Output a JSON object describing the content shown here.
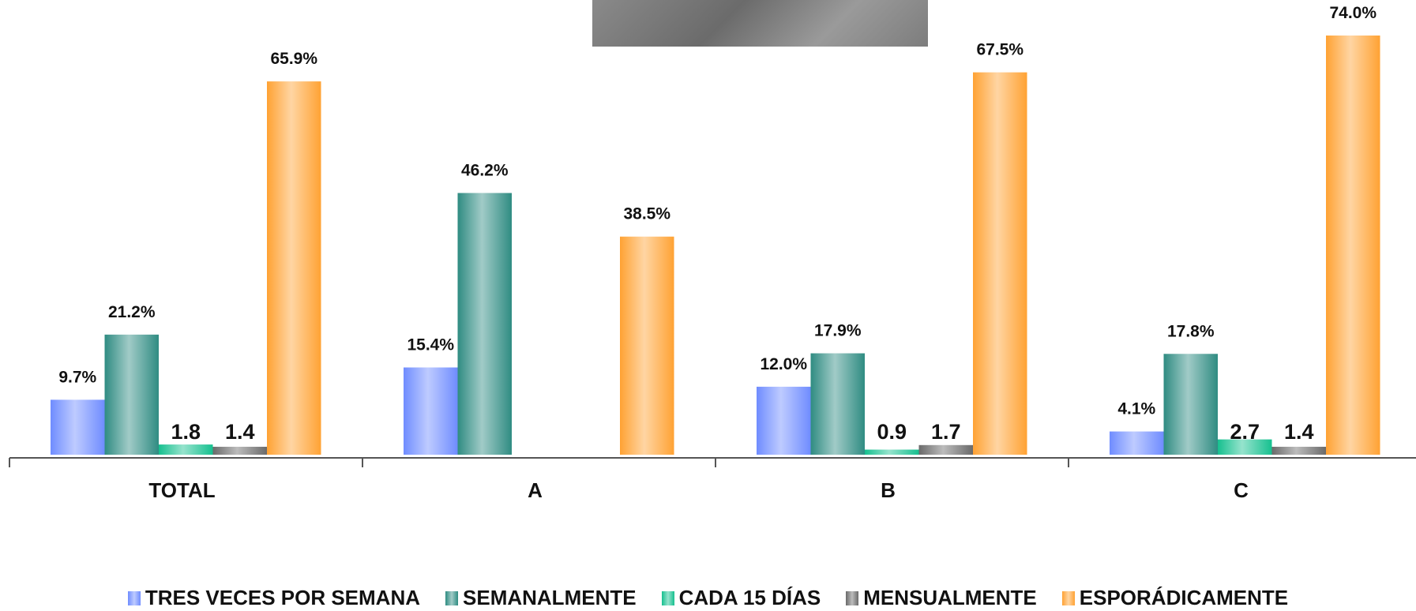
{
  "chart_data": {
    "type": "bar",
    "categories": [
      "TOTAL",
      "A",
      "B",
      "C"
    ],
    "series": [
      {
        "name": "TRES VECES POR SEMANA",
        "values": [
          9.7,
          15.4,
          12.0,
          4.1
        ],
        "labels": [
          "9.7%",
          "15.4%",
          "12.0%",
          "4.1%"
        ],
        "color": "#6f8cff"
      },
      {
        "name": "SEMANALMENTE",
        "values": [
          21.2,
          46.2,
          17.9,
          17.8
        ],
        "labels": [
          "21.2%",
          "46.2%",
          "17.9%",
          "17.8%"
        ],
        "color": "#2f8c82"
      },
      {
        "name": "CADA 15 DÍAS",
        "values": [
          1.8,
          null,
          0.9,
          2.7
        ],
        "labels": [
          "1.8",
          "",
          "0.9",
          "2.7"
        ],
        "color": "#16c08f"
      },
      {
        "name": "MENSUALMENTE",
        "values": [
          1.4,
          null,
          1.7,
          1.4
        ],
        "labels": [
          "1.4",
          "",
          "1.7",
          "1.4"
        ],
        "color": "#6a6a6a"
      },
      {
        "name": "ESPORÁDICAMENTE",
        "values": [
          65.9,
          38.5,
          67.5,
          74.0
        ],
        "labels": [
          "65.9%",
          "38.5%",
          "67.5%",
          "74.0%"
        ],
        "color": "#ffa233"
      }
    ],
    "ylim": [
      0,
      80
    ],
    "grid": false,
    "legend": "bottom",
    "xlabel": "",
    "ylabel": "",
    "title": ""
  }
}
